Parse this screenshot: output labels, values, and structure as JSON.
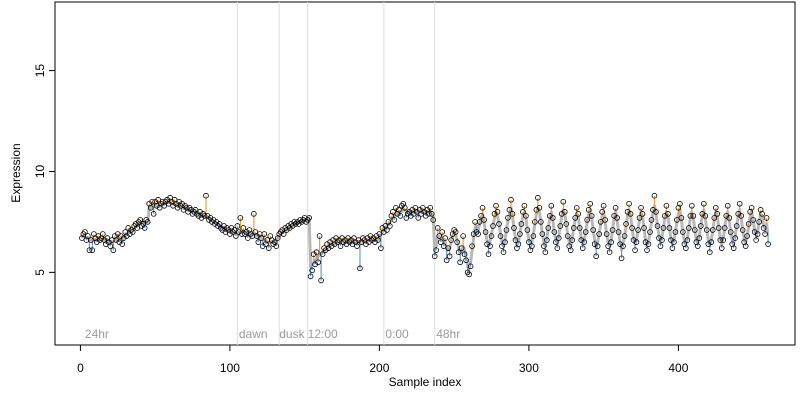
{
  "chart_data": {
    "type": "scatter",
    "x_label": "Sample index",
    "y_label": "Expression",
    "xlim": [
      -17,
      478
    ],
    "ylim": [
      1.4,
      18.4
    ],
    "xticks": [
      0,
      100,
      200,
      300,
      400
    ],
    "yticks": [
      5,
      10,
      15
    ],
    "vlines": [
      105,
      133,
      152,
      203,
      237
    ],
    "annotations": [
      {
        "x": 3,
        "label": "24hr"
      },
      {
        "x": 106,
        "label": "dawn"
      },
      {
        "x": 133,
        "label": "dusk"
      },
      {
        "x": 152,
        "label": "12:00"
      },
      {
        "x": 204,
        "label": "0:00"
      },
      {
        "x": 238,
        "label": "48hr"
      }
    ],
    "point_color": "#000000",
    "fitted_color": "#b8b8b8",
    "above_color": "#f0a030",
    "below_color": "#6a9ad6",
    "vline_color": "#dddddd",
    "values": [
      6.7,
      6.9,
      7.0,
      6.6,
      6.8,
      6.1,
      6.6,
      6.1,
      6.9,
      6.7,
      6.5,
      6.8,
      6.6,
      6.7,
      6.9,
      6.6,
      6.4,
      6.7,
      6.5,
      6.3,
      6.6,
      6.1,
      6.8,
      6.6,
      6.9,
      6.5,
      6.8,
      6.4,
      6.7,
      7.0,
      6.8,
      7.2,
      6.9,
      7.1,
      7.0,
      7.3,
      7.4,
      7.2,
      7.5,
      7.6,
      7.3,
      7.4,
      7.2,
      7.6,
      7.5,
      8.4,
      8.2,
      8.5,
      7.9,
      8.5,
      8.3,
      8.6,
      8.2,
      8.4,
      8.5,
      8.3,
      8.5,
      8.6,
      8.4,
      8.7,
      8.5,
      8.3,
      8.6,
      8.4,
      8.2,
      8.5,
      8.3,
      8.4,
      8.1,
      8.3,
      8.2,
      8.0,
      8.2,
      8.1,
      7.9,
      8.0,
      8.1,
      7.9,
      7.8,
      8.0,
      7.7,
      7.9,
      7.8,
      8.8,
      7.8,
      7.6,
      7.7,
      7.5,
      7.6,
      7.4,
      7.5,
      7.3,
      7.4,
      7.2,
      7.1,
      7.3,
      7.0,
      7.2,
      7.1,
      6.9,
      7.2,
      7.0,
      7.1,
      6.8,
      7.3,
      7.0,
      7.7,
      6.9,
      7.2,
      6.9,
      7.0,
      6.7,
      7.1,
      6.9,
      6.8,
      7.9,
      7.0,
      6.8,
      6.5,
      6.9,
      6.7,
      6.3,
      6.9,
      6.4,
      6.6,
      6.2,
      6.8,
      6.6,
      6.4,
      6.5,
      6.3,
      6.7,
      6.9,
      7.0,
      7.1,
      6.9,
      7.2,
      7.1,
      7.3,
      7.2,
      7.4,
      7.3,
      7.5,
      7.4,
      7.5,
      7.4,
      7.6,
      7.5,
      7.6,
      7.7,
      7.5,
      7.6,
      7.7,
      4.8,
      5.1,
      5.9,
      5.4,
      6.0,
      5.5,
      6.8,
      4.6,
      5.9,
      6.2,
      6.1,
      6.4,
      6.2,
      6.5,
      6.3,
      6.6,
      6.4,
      6.7,
      6.5,
      6.6,
      6.3,
      6.7,
      6.5,
      6.6,
      6.4,
      6.7,
      6.5,
      6.6,
      6.4,
      6.7,
      6.5,
      6.3,
      6.6,
      5.2,
      6.5,
      6.7,
      6.6,
      6.4,
      6.7,
      6.5,
      6.8,
      6.6,
      6.7,
      6.5,
      6.8,
      6.6,
      6.9,
      6.2,
      7.2,
      7.0,
      7.3,
      7.1,
      7.5,
      7.3,
      7.8,
      8.0,
      7.6,
      8.2,
      7.9,
      8.1,
      7.8,
      8.3,
      8.4,
      8.2,
      7.7,
      7.9,
      8.0,
      7.8,
      8.1,
      7.9,
      8.2,
      8.0,
      7.7,
      8.1,
      7.9,
      8.2,
      8.0,
      7.8,
      8.1,
      7.9,
      8.2,
      7.9,
      7.6,
      5.8,
      6.1,
      7.2,
      6.8,
      6.5,
      7.0,
      6.3,
      6.7,
      5.6,
      6.2,
      5.8,
      6.6,
      6.9,
      7.1,
      7.0,
      6.5,
      6.0,
      5.5,
      6.2,
      6.8,
      5.9,
      5.6,
      5.0,
      4.9,
      5.3,
      6.3,
      6.9,
      7.5,
      7.0,
      6.9,
      7.5,
      7.8,
      8.2,
      7.6,
      7.0,
      6.4,
      5.9,
      6.3,
      6.8,
      7.3,
      7.9,
      8.3,
      8.0,
      7.4,
      6.8,
      6.3,
      6.0,
      6.5,
      7.1,
      7.7,
      8.1,
      8.6,
      7.9,
      7.2,
      6.6,
      6.2,
      6.4,
      6.9,
      7.4,
      8.0,
      8.3,
      7.8,
      7.1,
      6.5,
      6.1,
      6.3,
      6.8,
      7.5,
      8.1,
      8.7,
      8.2,
      7.5,
      6.9,
      6.3,
      6.0,
      6.6,
      7.2,
      7.8,
      8.3,
      7.7,
      7.0,
      6.5,
      6.2,
      6.7,
      7.3,
      7.9,
      8.5,
      8.0,
      7.4,
      6.8,
      6.3,
      6.1,
      6.6,
      7.2,
      7.7,
      8.2,
      7.9,
      7.2,
      6.6,
      6.2,
      6.5,
      7.0,
      7.6,
      8.1,
      8.4,
      7.8,
      7.1,
      6.4,
      5.8,
      6.3,
      6.9,
      7.5,
      8.0,
      8.3,
      7.6,
      6.9,
      6.3,
      6.0,
      6.5,
      7.1,
      7.8,
      8.2,
      7.7,
      7.0,
      6.4,
      5.7,
      6.3,
      6.8,
      7.4,
      8.0,
      8.4,
      7.9,
      7.2,
      6.6,
      6.1,
      6.5,
      7.1,
      7.7,
      8.2,
      7.9,
      7.2,
      6.5,
      6.1,
      6.4,
      7.0,
      7.6,
      8.1,
      8.8,
      8.0,
      7.3,
      6.7,
      6.3,
      6.6,
      7.2,
      7.8,
      8.3,
      7.9,
      7.2,
      6.6,
      6.2,
      6.5,
      7.0,
      7.6,
      8.2,
      8.4,
      7.7,
      7.0,
      6.4,
      6.2,
      6.6,
      7.2,
      7.8,
      8.3,
      7.8,
      7.1,
      6.5,
      6.3,
      6.7,
      7.3,
      7.9,
      8.4,
      7.8,
      7.1,
      6.4,
      6.0,
      6.5,
      7.1,
      7.7,
      8.2,
      7.9,
      7.2,
      6.6,
      6.2,
      6.6,
      7.2,
      7.8,
      8.3,
      7.7,
      7.0,
      6.4,
      6.2,
      6.7,
      7.3,
      7.9,
      8.4,
      7.8,
      7.1,
      6.5,
      6.3,
      6.8,
      7.4,
      8.0,
      8.2,
      7.6,
      7.0,
      6.6,
      6.9,
      7.5,
      8.1,
      7.9,
      7.2,
      6.9,
      7.7,
      6.4
    ],
    "fitted": [
      6.8,
      6.8,
      6.8,
      6.7,
      6.7,
      6.6,
      6.6,
      6.6,
      6.6,
      6.6,
      6.6,
      6.6,
      6.6,
      6.6,
      6.6,
      6.6,
      6.6,
      6.6,
      6.5,
      6.5,
      6.5,
      6.5,
      6.6,
      6.6,
      6.6,
      6.6,
      6.6,
      6.6,
      6.7,
      6.8,
      6.9,
      7.0,
      7.0,
      7.1,
      7.1,
      7.2,
      7.3,
      7.3,
      7.4,
      7.5,
      7.5,
      7.5,
      7.5,
      7.5,
      7.5,
      8.2,
      8.2,
      8.3,
      8.3,
      8.3,
      8.3,
      8.4,
      8.4,
      8.4,
      8.4,
      8.4,
      8.4,
      8.5,
      8.5,
      8.5,
      8.4,
      8.4,
      8.4,
      8.4,
      8.3,
      8.3,
      8.3,
      8.3,
      8.2,
      8.2,
      8.2,
      8.1,
      8.1,
      8.1,
      8.0,
      8.0,
      8.0,
      7.9,
      7.9,
      7.9,
      7.8,
      7.8,
      7.8,
      7.8,
      7.7,
      7.7,
      7.6,
      7.6,
      7.5,
      7.5,
      7.4,
      7.4,
      7.3,
      7.3,
      7.2,
      7.2,
      7.2,
      7.1,
      7.1,
      7.1,
      7.1,
      7.0,
      7.0,
      7.0,
      7.0,
      7.0,
      7.0,
      7.0,
      7.0,
      7.0,
      6.9,
      6.9,
      6.9,
      6.9,
      6.9,
      6.9,
      6.9,
      6.8,
      6.8,
      6.8,
      6.7,
      6.6,
      6.6,
      6.6,
      6.5,
      6.5,
      6.5,
      6.5,
      6.5,
      6.5,
      6.6,
      6.7,
      6.8,
      6.9,
      7.0,
      7.0,
      7.1,
      7.1,
      7.2,
      7.2,
      7.3,
      7.3,
      7.4,
      7.4,
      7.4,
      7.5,
      7.5,
      7.5,
      7.6,
      7.6,
      7.6,
      7.6,
      7.7,
      5.3,
      5.4,
      5.5,
      5.6,
      5.7,
      5.8,
      5.9,
      5.9,
      6.0,
      6.1,
      6.1,
      6.2,
      6.3,
      6.3,
      6.4,
      6.4,
      6.4,
      6.5,
      6.5,
      6.5,
      6.5,
      6.5,
      6.5,
      6.5,
      6.5,
      6.5,
      6.5,
      6.5,
      6.5,
      6.5,
      6.5,
      6.5,
      6.5,
      6.5,
      6.5,
      6.5,
      6.5,
      6.5,
      6.6,
      6.6,
      6.6,
      6.6,
      6.6,
      6.6,
      6.6,
      6.6,
      6.7,
      6.9,
      7.0,
      7.1,
      7.2,
      7.3,
      7.4,
      7.5,
      7.6,
      7.7,
      7.8,
      7.9,
      7.9,
      8.0,
      8.0,
      8.0,
      8.1,
      8.1,
      8.0,
      8.0,
      8.0,
      8.0,
      8.0,
      8.0,
      8.0,
      8.0,
      8.0,
      8.0,
      8.0,
      8.0,
      8.0,
      8.0,
      8.0,
      8.0,
      8.0,
      7.9,
      7.8,
      6.1,
      6.3,
      6.8,
      6.8,
      6.7,
      6.7,
      6.6,
      6.5,
      6.2,
      6.1,
      6.2,
      6.5,
      6.8,
      7.0,
      6.9,
      6.6,
      6.2,
      5.9,
      6.0,
      6.3,
      6.1,
      5.7,
      5.3,
      5.2,
      5.5,
      6.1,
      6.7,
      7.2,
      7.3,
      7.0,
      7.4,
      7.7,
      7.9,
      7.5,
      7.0,
      6.6,
      6.3,
      6.5,
      6.9,
      7.3,
      7.7,
      8.0,
      7.8,
      7.4,
      6.9,
      6.5,
      6.3,
      6.6,
      7.1,
      7.6,
      7.9,
      8.2,
      7.8,
      7.2,
      6.7,
      6.4,
      6.5,
      6.9,
      7.4,
      7.8,
      8.0,
      7.7,
      7.1,
      6.6,
      6.3,
      6.5,
      6.9,
      7.4,
      7.9,
      8.2,
      8.0,
      7.5,
      6.9,
      6.5,
      6.3,
      6.7,
      7.2,
      7.7,
      8.0,
      7.6,
      7.0,
      6.6,
      6.4,
      6.8,
      7.3,
      7.8,
      8.1,
      7.9,
      7.4,
      6.8,
      6.5,
      6.3,
      6.7,
      7.2,
      7.6,
      7.9,
      7.8,
      7.2,
      6.7,
      6.4,
      6.6,
      7.0,
      7.5,
      7.9,
      8.1,
      7.7,
      7.1,
      6.6,
      6.2,
      6.5,
      6.9,
      7.4,
      7.8,
      8.0,
      7.5,
      6.9,
      6.5,
      6.3,
      6.6,
      7.1,
      7.7,
      8.0,
      7.6,
      7.0,
      6.5,
      6.1,
      6.4,
      6.8,
      7.3,
      7.8,
      8.1,
      7.8,
      7.2,
      6.7,
      6.4,
      6.6,
      7.1,
      7.6,
      8.0,
      7.8,
      7.2,
      6.6,
      6.3,
      6.5,
      7.0,
      7.5,
      8.0,
      8.3,
      7.9,
      7.3,
      6.8,
      6.5,
      6.7,
      7.2,
      7.7,
      8.0,
      7.8,
      7.2,
      6.7,
      6.4,
      6.6,
      7.0,
      7.5,
      7.9,
      8.1,
      7.6,
      7.0,
      6.5,
      6.4,
      6.7,
      7.2,
      7.7,
      8.0,
      7.7,
      7.1,
      6.6,
      6.5,
      6.8,
      7.3,
      7.8,
      8.1,
      7.7,
      7.1,
      6.6,
      6.3,
      6.6,
      7.1,
      7.6,
      8.0,
      7.8,
      7.2,
      6.7,
      6.4,
      6.7,
      7.2,
      7.7,
      8.0,
      7.6,
      7.0,
      6.6,
      6.4,
      6.8,
      7.3,
      7.8,
      8.1,
      7.7,
      7.1,
      6.6,
      6.5,
      6.8,
      7.3,
      7.8,
      8.0,
      7.6,
      7.1,
      6.8,
      7.0,
      7.5,
      7.9,
      7.8,
      7.3,
      7.2,
      7.4,
      6.8
    ]
  }
}
